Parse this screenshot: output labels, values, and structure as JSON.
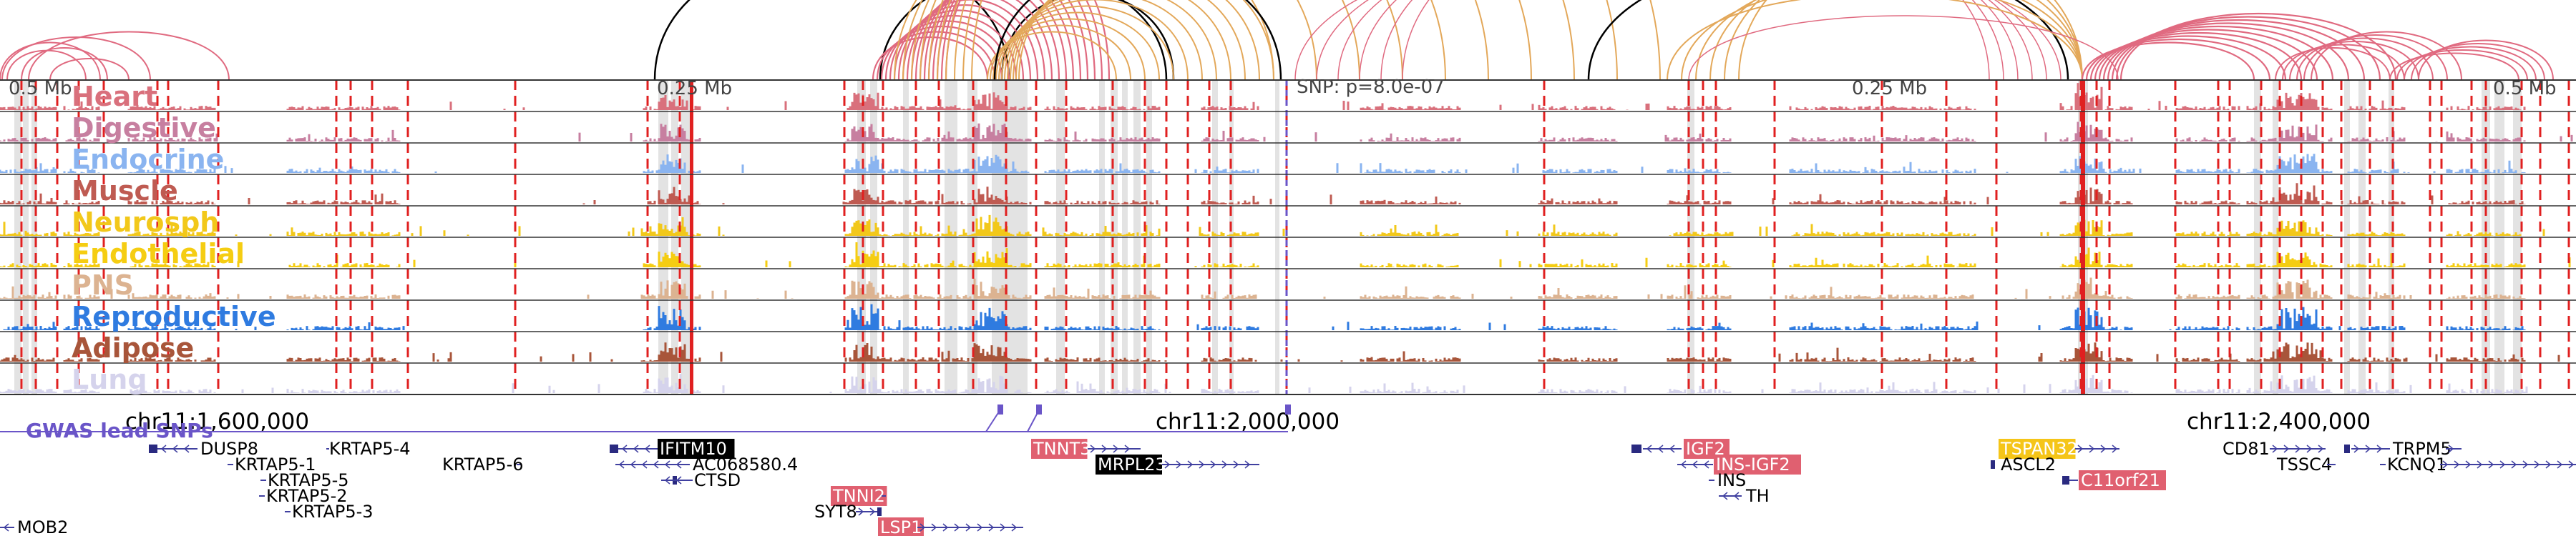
{
  "browser": {
    "ruler_left": "0.5 Mb",
    "ruler_mid_left": "0.25 Mb",
    "ruler_mid_right": "0.25 Mb",
    "ruler_right": "0.5 Mb",
    "snp_info": "SNP: p=8.0e-07",
    "coord_1": "chr11:1,600,000",
    "coord_2": "chr11:2,000,000",
    "coord_3": "chr11:2,400,000",
    "gwas_label": "GWAS lead SNPs"
  },
  "tracks": [
    {
      "name": "Heart",
      "color": "#d9707c"
    },
    {
      "name": "Digestive",
      "color": "#c77fa0"
    },
    {
      "name": "Endocrine",
      "color": "#8ab4f0"
    },
    {
      "name": "Muscle",
      "color": "#bf5b52"
    },
    {
      "name": "Neurosph",
      "color": "#f2c81a"
    },
    {
      "name": "Endothelial",
      "color": "#f5cd12"
    },
    {
      "name": "PNS",
      "color": "#dcb391"
    },
    {
      "name": "Reproductive",
      "color": "#2f7be0"
    },
    {
      "name": "Adipose",
      "color": "#a8553a"
    },
    {
      "name": "Lung",
      "color": "#d5d3ec"
    }
  ],
  "genes": {
    "mob2": "MOB2",
    "dusp8": "DUSP8",
    "krtap5_4": "KRTAP5-4",
    "krtap5_1": "KRTAP5-1",
    "krtap5_6": "KRTAP5-6",
    "krtap5_5": "KRTAP5-5",
    "krtap5_2": "KRTAP5-2",
    "krtap5_3": "KRTAP5-3",
    "ifitm10": "IFITM10",
    "ac068580": "AC068580.4",
    "ctsd": "CTSD",
    "tnni2": "TNNI2",
    "syt8": "SYT8",
    "lsp1": "LSP1",
    "tnnt3": "TNNT3",
    "mrpl23": "MRPL23",
    "igf2": "IGF2",
    "ins_igf2": "INS-IGF2",
    "ins": "INS",
    "th": "TH",
    "tspan32": "TSPAN32",
    "ascl2": "ASCL2",
    "c11orf21": "C11orf21",
    "cd81": "CD81",
    "tssc4": "TSSC4",
    "tpm5": "TRPM5",
    "kcnq1": "KCNQ1"
  },
  "colors": {
    "highlight_gene": "#e06070",
    "black_gene": "#000000",
    "yellow_gene": "#f5c518",
    "gwas": "#6a55c8",
    "red_line": "#e02020",
    "arc_pink": "#e06a80",
    "arc_orange": "#e3a85a",
    "arc_black": "#000000",
    "gene_line": "#4040a0"
  }
}
